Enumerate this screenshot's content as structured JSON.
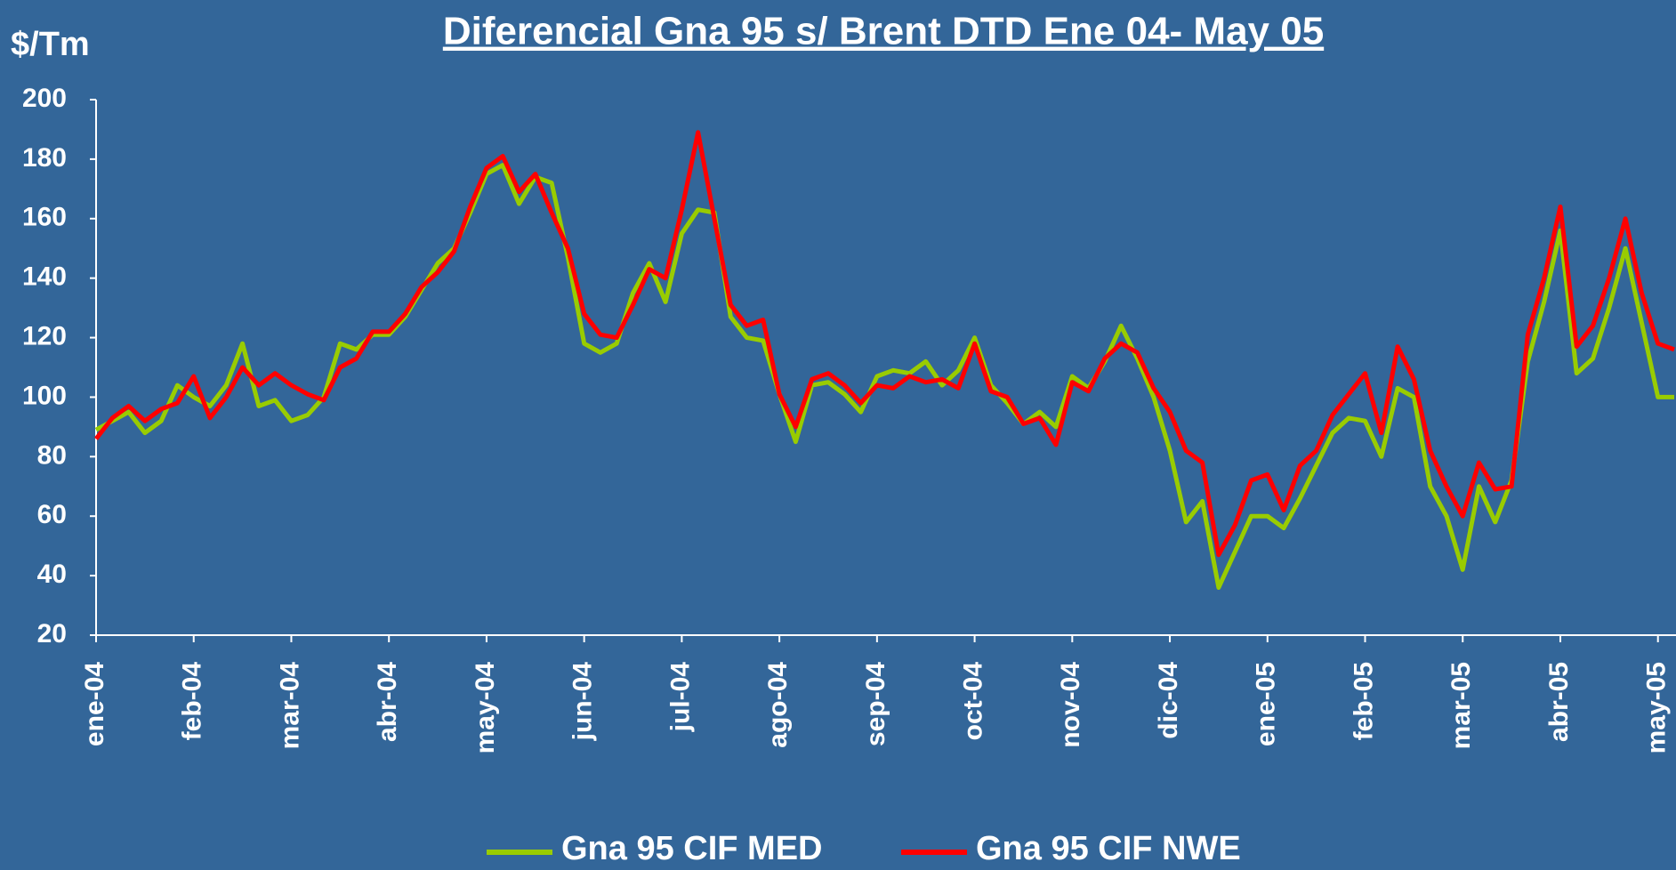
{
  "chart_data": {
    "type": "line",
    "title": "Diferencial Gna 95 s/ Brent DTD Ene 04- May 05",
    "y_label": "$/Tm",
    "categories": [
      "ene-04",
      null,
      null,
      null,
      null,
      null,
      "feb-04",
      null,
      null,
      null,
      null,
      null,
      "mar-04",
      null,
      null,
      null,
      null,
      null,
      "abr-04",
      null,
      null,
      null,
      null,
      null,
      "may-04",
      null,
      null,
      null,
      null,
      null,
      "jun-04",
      null,
      null,
      null,
      null,
      null,
      "jul-04",
      null,
      null,
      null,
      null,
      null,
      "ago-04",
      null,
      null,
      null,
      null,
      null,
      "sep-04",
      null,
      null,
      null,
      null,
      null,
      "oct-04",
      null,
      null,
      null,
      null,
      null,
      "nov-04",
      null,
      null,
      null,
      null,
      null,
      "dic-04",
      null,
      null,
      null,
      null,
      null,
      "ene-05",
      null,
      null,
      null,
      null,
      null,
      "feb-05",
      null,
      null,
      null,
      null,
      null,
      "mar-05",
      null,
      null,
      null,
      null,
      null,
      "abr-05",
      null,
      null,
      null,
      null,
      null,
      "may-05",
      null
    ],
    "series": [
      {
        "name": "Gna 95 CIF MED",
        "color": "#99cc00",
        "values": [
          89,
          92,
          95,
          88,
          92,
          104,
          100,
          97,
          104,
          118,
          97,
          99,
          92,
          94,
          100,
          118,
          116,
          121,
          121,
          127,
          136,
          145,
          150,
          162,
          175,
          178,
          165,
          174,
          172,
          147,
          118,
          115,
          118,
          135,
          145,
          132,
          155,
          163,
          162,
          127,
          120,
          119,
          101,
          85,
          104,
          105,
          101,
          95,
          107,
          109,
          108,
          112,
          104,
          109,
          120,
          104,
          98,
          91,
          95,
          90,
          107,
          103,
          112,
          124,
          113,
          100,
          82,
          58,
          65,
          36,
          48,
          60,
          60,
          56,
          66,
          77,
          88,
          93,
          92,
          80,
          103,
          100,
          70,
          60,
          42,
          70,
          58,
          72,
          112,
          132,
          156,
          108,
          113,
          130,
          150,
          125,
          100,
          100
        ]
      },
      {
        "name": "Gna 95 CIF NWE",
        "color": "#ff0000",
        "values": [
          86,
          93,
          97,
          92,
          96,
          98,
          107,
          93,
          100,
          110,
          104,
          108,
          104,
          101,
          99,
          110,
          113,
          122,
          122,
          128,
          137,
          142,
          149,
          164,
          177,
          181,
          169,
          175,
          162,
          150,
          128,
          121,
          120,
          131,
          143,
          140,
          163,
          189,
          160,
          131,
          124,
          126,
          101,
          90,
          106,
          108,
          104,
          98,
          104,
          103,
          107,
          105,
          106,
          103,
          118,
          102,
          100,
          91,
          93,
          84,
          105,
          102,
          113,
          118,
          115,
          103,
          95,
          82,
          78,
          47,
          57,
          72,
          74,
          62,
          77,
          82,
          94,
          101,
          108,
          88,
          117,
          106,
          82,
          70,
          60,
          78,
          69,
          70,
          121,
          140,
          164,
          117,
          124,
          140,
          160,
          135,
          118,
          116
        ]
      }
    ],
    "ylim": [
      20,
      200
    ],
    "yticks": [
      20,
      40,
      60,
      80,
      100,
      120,
      140,
      160,
      180,
      200
    ],
    "grid": false
  }
}
